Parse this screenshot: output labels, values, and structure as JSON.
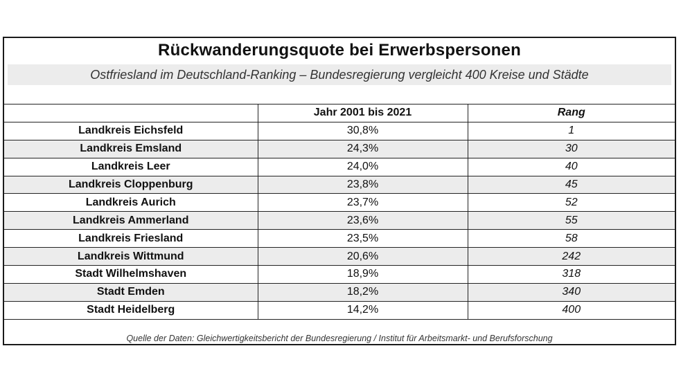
{
  "title": "Rückwanderungsquote bei Erwerbspersonen",
  "subtitle": "Ostfriesland im Deutschland-Ranking – Bundesregierung vergleicht 400 Kreise und Städte",
  "table": {
    "headers": [
      "",
      "Jahr 2001 bis 2021",
      "Rang"
    ],
    "rows": [
      {
        "name": "Landkreis Eichsfeld",
        "quote": "30,8%",
        "rang": "1"
      },
      {
        "name": "Landkreis Emsland",
        "quote": "24,3%",
        "rang": "30"
      },
      {
        "name": "Landkreis Leer",
        "quote": "24,0%",
        "rang": "40"
      },
      {
        "name": "Landkreis Cloppenburg",
        "quote": "23,8%",
        "rang": "45"
      },
      {
        "name": "Landkreis Aurich",
        "quote": "23,7%",
        "rang": "52"
      },
      {
        "name": "Landkreis Ammerland",
        "quote": "23,6%",
        "rang": "55"
      },
      {
        "name": "Landkreis Friesland",
        "quote": "23,5%",
        "rang": "58"
      },
      {
        "name": "Landkreis Wittmund",
        "quote": "20,6%",
        "rang": "242"
      },
      {
        "name": "Stadt Wilhelmshaven",
        "quote": "18,9%",
        "rang": "318"
      },
      {
        "name": "Stadt Emden",
        "quote": "18,2%",
        "rang": "340"
      },
      {
        "name": "Stadt Heidelberg",
        "quote": "14,2%",
        "rang": "400"
      }
    ]
  },
  "source": "Quelle der Daten: Gleichwertigkeitsbericht der Bundesregierung / Institut für Arbeitsmarkt- und Berufsforschung",
  "colors": {
    "border": "#1a1a1a",
    "shade": "#ececec"
  }
}
